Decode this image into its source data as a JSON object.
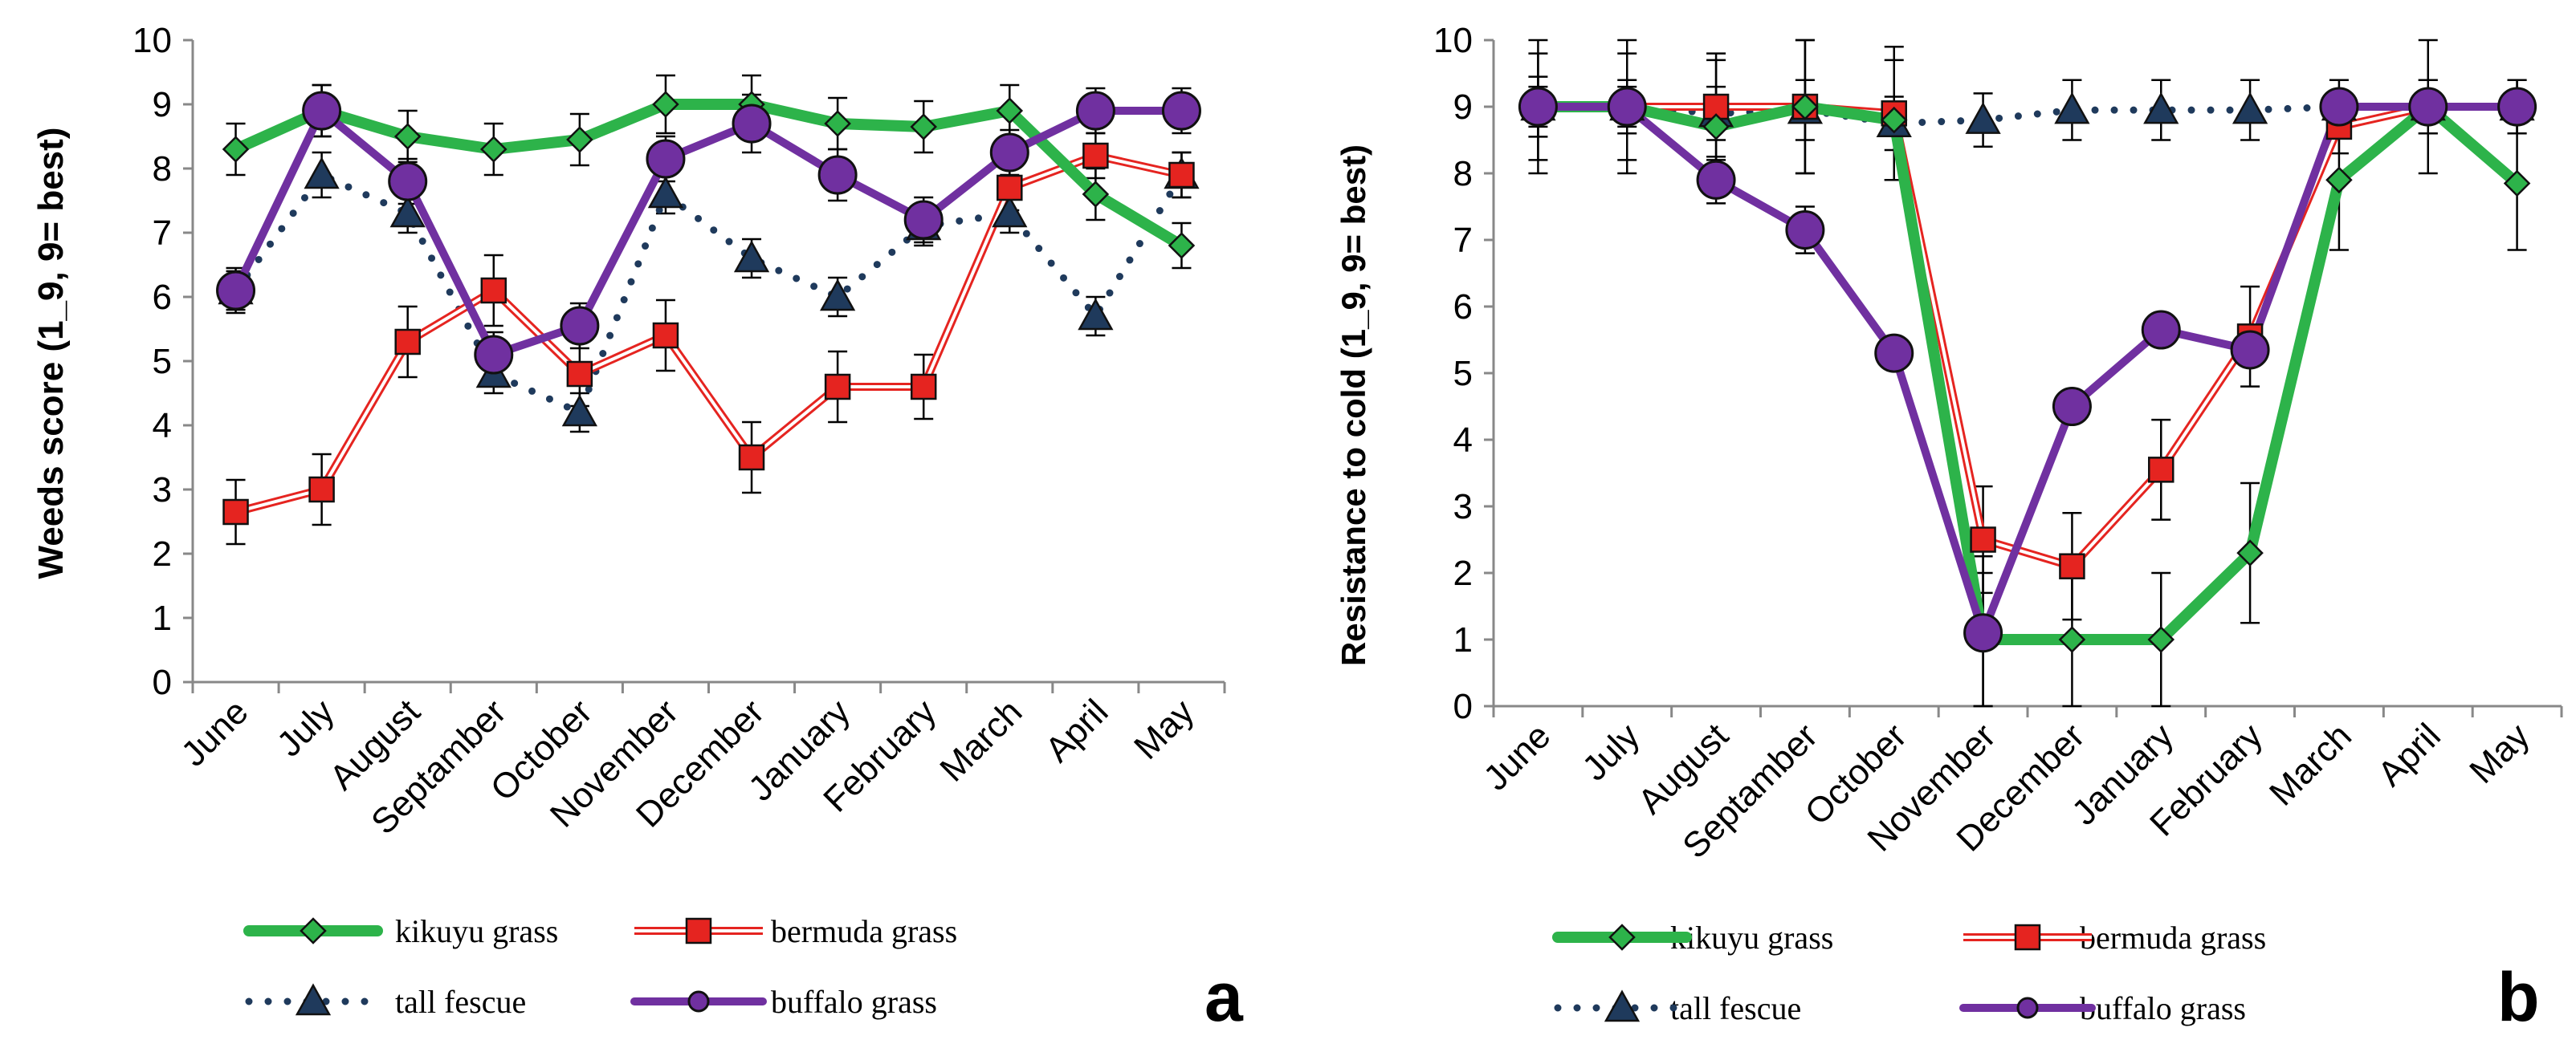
{
  "chart_data": [
    {
      "type": "line",
      "panel_label": "a",
      "ylabel": "Weeds score (1_9, 9= best)",
      "xlabel": "",
      "ylim": [
        0,
        10
      ],
      "yticks": [
        "0",
        "1",
        "2",
        "3",
        "4",
        "5",
        "6",
        "7",
        "8",
        "9",
        "10"
      ],
      "categories": [
        "June",
        "July",
        "August",
        "Septamber",
        "October",
        "November",
        "December",
        "January",
        "February",
        "March",
        "April",
        "May"
      ],
      "series": [
        {
          "name": "kikuyu grass",
          "color": "#2db34a",
          "marker": "diamond",
          "values": [
            8.3,
            8.9,
            8.5,
            8.3,
            8.45,
            9.0,
            9.0,
            8.7,
            8.65,
            8.9,
            7.6,
            6.8
          ],
          "errors": [
            0.4,
            0.4,
            0.4,
            0.4,
            0.4,
            0.45,
            0.45,
            0.4,
            0.4,
            0.4,
            0.4,
            0.35
          ]
        },
        {
          "name": "bermuda grass",
          "color": "#e52420",
          "marker": "square",
          "values": [
            2.65,
            3.0,
            5.3,
            6.1,
            4.8,
            5.4,
            3.5,
            4.6,
            4.6,
            7.7,
            8.2,
            7.9
          ],
          "errors": [
            0.5,
            0.55,
            0.55,
            0.55,
            0.5,
            0.55,
            0.55,
            0.55,
            0.5,
            0.35,
            0.35,
            0.35
          ]
        },
        {
          "name": "tall fescue",
          "color": "#1f3a5c",
          "marker": "triangle",
          "values": [
            6.1,
            7.9,
            7.3,
            4.8,
            4.2,
            7.6,
            6.6,
            6.0,
            7.1,
            7.3,
            5.7,
            7.9
          ],
          "errors": [
            0.3,
            0.35,
            0.3,
            0.3,
            0.3,
            0.3,
            0.3,
            0.3,
            0.3,
            0.3,
            0.3,
            0.35
          ]
        },
        {
          "name": "buffalo grass",
          "color": "#7030a0",
          "marker": "circle",
          "values": [
            6.1,
            8.9,
            7.8,
            5.1,
            5.55,
            8.15,
            8.7,
            7.9,
            7.2,
            8.25,
            8.9,
            8.9
          ],
          "errors": [
            0.35,
            0.4,
            0.35,
            0.35,
            0.35,
            0.35,
            0.45,
            0.4,
            0.35,
            0.35,
            0.35,
            0.35
          ]
        }
      ],
      "legend": [
        "kikuyu grass",
        "bermuda grass",
        "tall fescue",
        "buffalo grass"
      ]
    },
    {
      "type": "line",
      "panel_label": "b",
      "ylabel": "Resistance to cold (1_9, 9= best)",
      "xlabel": "",
      "ylim": [
        0,
        10
      ],
      "yticks": [
        "0",
        "1",
        "2",
        "3",
        "4",
        "5",
        "6",
        "7",
        "8",
        "9",
        "10"
      ],
      "categories": [
        "June",
        "July",
        "August",
        "Septamber",
        "October",
        "November",
        "December",
        "January",
        "February",
        "March",
        "April",
        "May"
      ],
      "series": [
        {
          "name": "kikuyu grass",
          "color": "#2db34a",
          "marker": "diamond",
          "values": [
            9.0,
            9.0,
            8.7,
            9.0,
            8.8,
            1.0,
            1.0,
            1.0,
            2.3,
            7.9,
            9.0,
            7.85
          ],
          "errors": [
            1.0,
            1.0,
            1.0,
            1.0,
            0.9,
            1.0,
            1.0,
            1.0,
            1.05,
            1.05,
            1.0,
            1.0
          ]
        },
        {
          "name": "bermuda grass",
          "color": "#e52420",
          "marker": "square",
          "values": [
            9.0,
            9.0,
            9.0,
            9.0,
            8.9,
            2.5,
            2.1,
            3.55,
            5.55,
            8.7,
            9.0,
            9.0
          ],
          "errors": [
            0.8,
            0.8,
            0.8,
            1.0,
            1.0,
            0.8,
            0.8,
            0.75,
            0.75,
            0.4,
            0.4,
            0.4
          ]
        },
        {
          "name": "tall fescue",
          "color": "#1f3a5c",
          "marker": "triangle",
          "values": [
            9.0,
            9.0,
            8.9,
            8.95,
            8.75,
            8.8,
            8.95,
            8.95,
            8.95,
            9.0,
            9.0,
            9.0
          ],
          "errors": [
            0.45,
            0.4,
            0.4,
            0.45,
            0.4,
            0.4,
            0.45,
            0.45,
            0.45,
            0.4,
            0.4,
            0.4
          ]
        },
        {
          "name": "buffalo grass",
          "color": "#7030a0",
          "marker": "circle",
          "values": [
            9.0,
            9.0,
            7.9,
            7.15,
            5.3,
            1.1,
            4.5,
            5.65,
            5.35,
            9.0,
            9.0,
            9.0
          ],
          "errors": [
            0.3,
            0.3,
            0.35,
            0.35,
            0.0,
            1.15,
            0.0,
            0.0,
            0.0,
            0.0,
            0.0,
            0.0
          ]
        }
      ],
      "legend": [
        "kikuyu grass",
        "bermuda grass",
        "tall fescue",
        "buffalo grass"
      ]
    }
  ]
}
